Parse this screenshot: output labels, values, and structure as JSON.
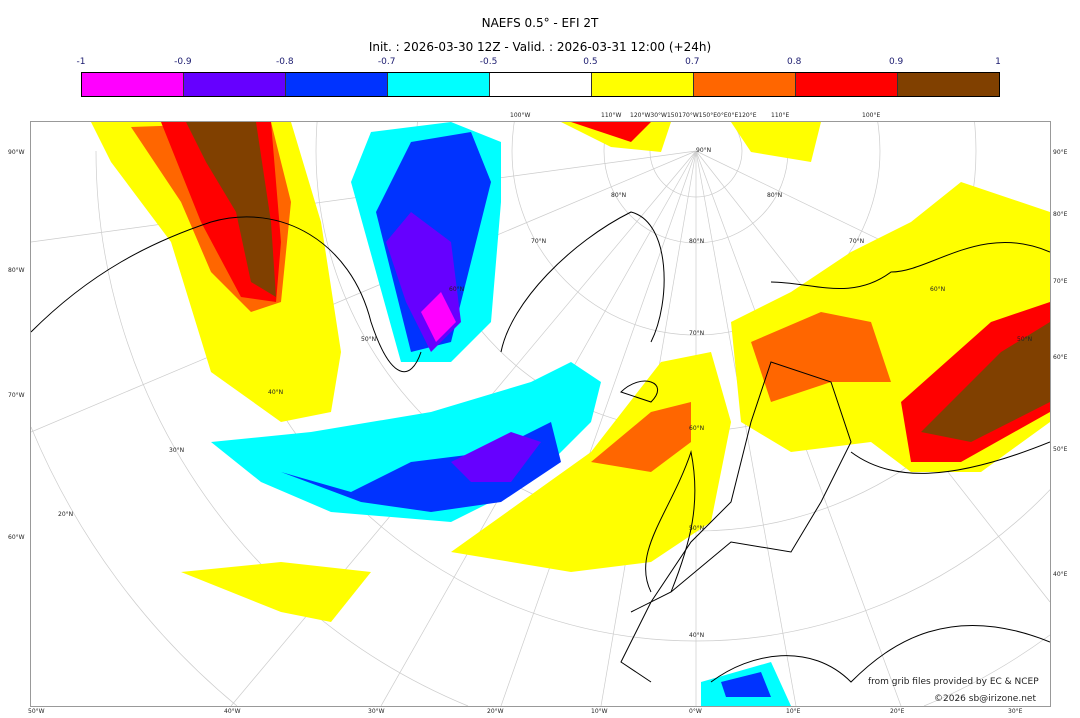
{
  "title": "NAEFS 0.5° - EFI 2T",
  "subtitle": "Init. : 2026-03-30 12Z - Valid. : 2026-03-31 12:00 (+24h)",
  "colorbar": {
    "ticks": [
      "-1",
      "-0.9",
      "-0.8",
      "-0.7",
      "-0.5",
      "0.5",
      "0.7",
      "0.8",
      "0.9",
      "1"
    ],
    "colors": [
      "#ff00ff",
      "#6600ff",
      "#0033ff",
      "#00ffff",
      "#ffffff",
      "#ffff00",
      "#ff6600",
      "#ff0000",
      "#804000"
    ]
  },
  "axes": {
    "left": [
      "90°W",
      "80°W",
      "70°W",
      "60°W"
    ],
    "right": [
      "90°E",
      "80°E",
      "70°E",
      "60°E",
      "50°E",
      "40°E"
    ],
    "bottom": [
      "50°W",
      "40°W",
      "30°W",
      "20°W",
      "10°W",
      "0°W",
      "10°E",
      "20°E",
      "30°E"
    ],
    "top": [
      "100°W",
      "110°W",
      "120°W30°W150170°W150°E0°E0°E120°E",
      "110°E",
      "100°E"
    ],
    "lat_labels": [
      "90°N",
      "80°N",
      "70°N",
      "60°N",
      "50°N",
      "40°N",
      "30°N",
      "20°N",
      "80°N",
      "70°N",
      "60°N",
      "50°N",
      "40°N",
      "80°N",
      "70°N",
      "60°N",
      "50°N"
    ]
  },
  "credits": {
    "source": "from grib files provided by EC & NCEP",
    "copyright": "©2026 sb@irizone.net"
  }
}
